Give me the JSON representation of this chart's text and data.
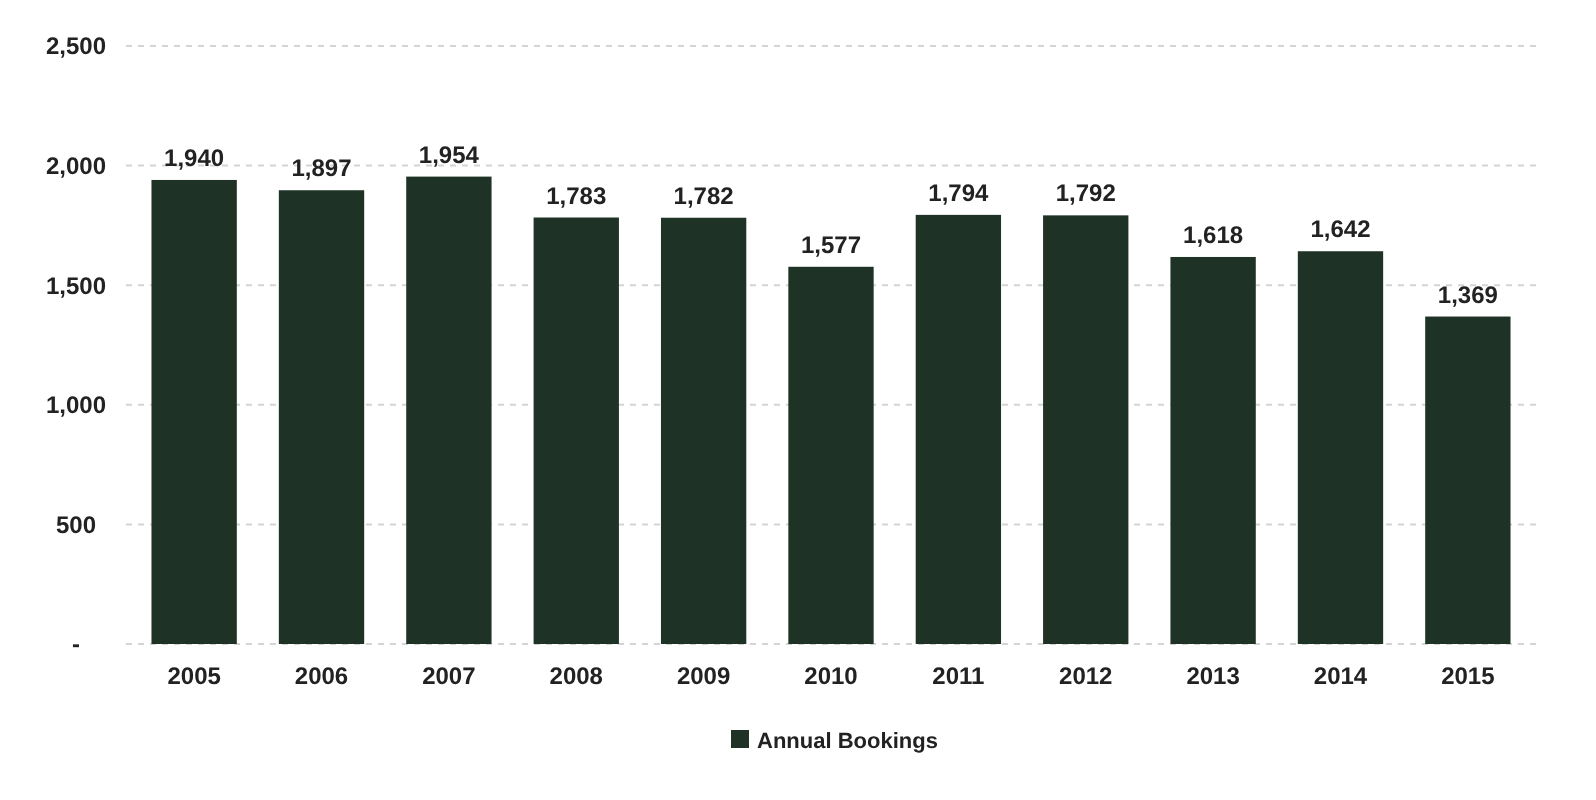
{
  "chart_data": {
    "type": "bar",
    "categories": [
      "2005",
      "2006",
      "2007",
      "2008",
      "2009",
      "2010",
      "2011",
      "2012",
      "2013",
      "2014",
      "2015"
    ],
    "series": [
      {
        "name": "Annual Bookings",
        "color": "#1e3326",
        "values": [
          1940,
          1897,
          1954,
          1783,
          1782,
          1577,
          1794,
          1792,
          1618,
          1642,
          1369
        ],
        "value_labels": [
          "1,940",
          "1,897",
          "1,954",
          "1,783",
          "1,782",
          "1,577",
          "1,794",
          "1,792",
          "1,618",
          "1,642",
          "1,369"
        ]
      }
    ],
    "ylim": [
      0,
      2500
    ],
    "yticks": [
      {
        "value": 0,
        "label": "-"
      },
      {
        "value": 500,
        "label": "500"
      },
      {
        "value": 1000,
        "label": "1,000"
      },
      {
        "value": 1500,
        "label": "1,500"
      },
      {
        "value": 2000,
        "label": "2,000"
      },
      {
        "value": 2500,
        "label": "2,500"
      }
    ],
    "grid": "y",
    "legend": "bottom"
  }
}
